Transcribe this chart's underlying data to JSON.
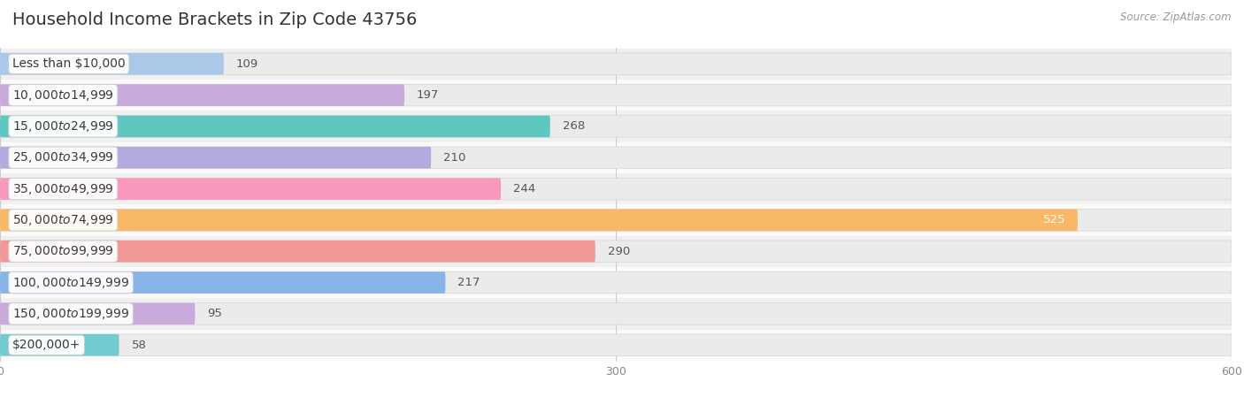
{
  "title": "Household Income Brackets in Zip Code 43756",
  "source": "Source: ZipAtlas.com",
  "categories": [
    "Less than $10,000",
    "$10,000 to $14,999",
    "$15,000 to $24,999",
    "$25,000 to $34,999",
    "$35,000 to $49,999",
    "$50,000 to $74,999",
    "$75,000 to $99,999",
    "$100,000 to $149,999",
    "$150,000 to $199,999",
    "$200,000+"
  ],
  "values": [
    109,
    197,
    268,
    210,
    244,
    525,
    290,
    217,
    95,
    58
  ],
  "bar_colors": [
    "#aac8e8",
    "#c8aadc",
    "#5ec8c0",
    "#b4aade",
    "#f898bc",
    "#f8b868",
    "#f09898",
    "#88b4e8",
    "#c8aadc",
    "#70ccd0"
  ],
  "xlim": [
    0,
    600
  ],
  "xticks": [
    0,
    300,
    600
  ],
  "bg_color": "#f7f7f7",
  "bar_bg_color": "#ebebeb",
  "row_bg_even": "#f0f0f0",
  "row_bg_odd": "#fafafa",
  "title_fontsize": 14,
  "label_fontsize": 10,
  "value_fontsize": 9.5
}
